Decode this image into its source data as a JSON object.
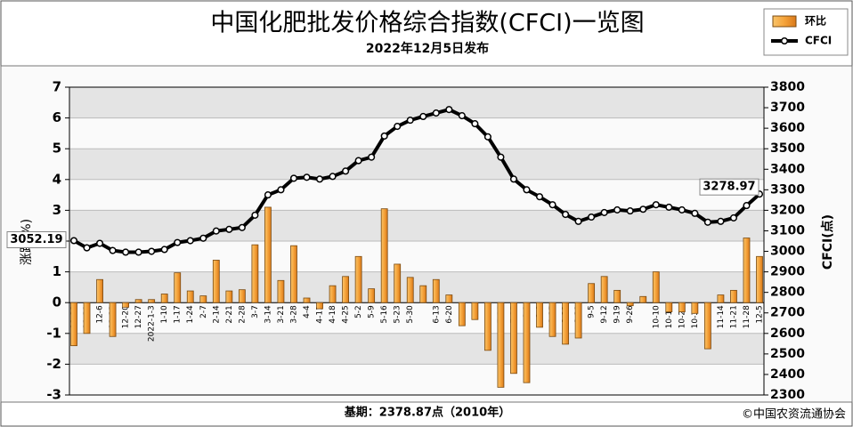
{
  "chart_data": {
    "type": "bar-line",
    "title": "中国化肥批发价格综合指数(CFCI)一览图",
    "subtitle": "2022年12月5日发布",
    "y_label": "涨跌(%)",
    "y2_label": "CFCI(点)",
    "footer_base": "基期：2378.87点（2010年）",
    "footer_copyright": "©中国农资流通协会",
    "categories": [
      "11-22",
      "11-29",
      "12-6",
      "12-13",
      "12-20",
      "12-27",
      "2022-1-3",
      "1-10",
      "1-17",
      "1-24",
      "2-7",
      "2-14",
      "2-21",
      "2-28",
      "3-7",
      "3-14",
      "3-21",
      "3-28",
      "4-4",
      "4-11",
      "4-18",
      "4-25",
      "5-2",
      "5-9",
      "5-16",
      "5-23",
      "5-30",
      null,
      "6-13",
      "6-20",
      "6-27",
      "7-4",
      null,
      "7-18",
      "7-25",
      "8-1",
      "8-8",
      "8-15",
      "8-22",
      "8-29",
      "9-5",
      "9-12",
      "9-19",
      "9-26",
      null,
      "10-10",
      "10-17",
      "10-24",
      "10-31",
      "11-7",
      "11-14",
      "11-21",
      "11-28",
      "12-5"
    ],
    "series": [
      {
        "name": "环比",
        "color": "#f0a030",
        "values": [
          -1.4,
          -1.0,
          0.75,
          -1.1,
          -0.15,
          0.1,
          0.1,
          0.28,
          0.97,
          0.38,
          0.22,
          1.38,
          0.38,
          0.42,
          1.88,
          3.1,
          0.72,
          1.85,
          0.15,
          -0.2,
          0.55,
          0.85,
          1.5,
          0.45,
          3.05,
          1.25,
          0.82,
          0.55,
          0.75,
          0.25,
          -0.75,
          -0.55,
          -1.55,
          -2.75,
          -2.3,
          -2.6,
          -0.8,
          -1.1,
          -1.35,
          -1.15,
          0.62,
          0.85,
          0.4,
          -0.1,
          0.2,
          1.0,
          -0.3,
          -0.3,
          -0.35,
          -1.5,
          0.25,
          0.4,
          2.1,
          1.5
        ]
      },
      {
        "name": "CFCI",
        "color": "#000000",
        "axis": "y2",
        "values": [
          3052.19,
          3017,
          3039,
          3004,
          2996,
          2996,
          3000,
          3009,
          3043,
          3052,
          3064,
          3099,
          3107,
          3116,
          3176,
          3275,
          3300,
          3356,
          3361,
          3352,
          3365,
          3391,
          3442,
          3459,
          3562,
          3609,
          3639,
          3657,
          3674,
          3691,
          3661,
          3622,
          3558,
          3459,
          3352,
          3300,
          3266,
          3227,
          3180,
          3146,
          3167,
          3189,
          3202,
          3197,
          3205,
          3227,
          3215,
          3202,
          3185,
          3142,
          3146,
          3163,
          3223,
          3278.97
        ]
      }
    ],
    "ylim": [
      -3,
      7
    ],
    "yticks": [
      -3,
      -2,
      -1,
      0,
      1,
      2,
      3,
      4,
      5,
      6,
      7
    ],
    "y2lim": [
      2300,
      3800
    ],
    "y2ticks": [
      2300,
      2400,
      2500,
      2600,
      2700,
      2800,
      2900,
      3000,
      3100,
      3200,
      3300,
      3400,
      3500,
      3600,
      3700,
      3800
    ],
    "grid": true,
    "legend": "top-right"
  }
}
